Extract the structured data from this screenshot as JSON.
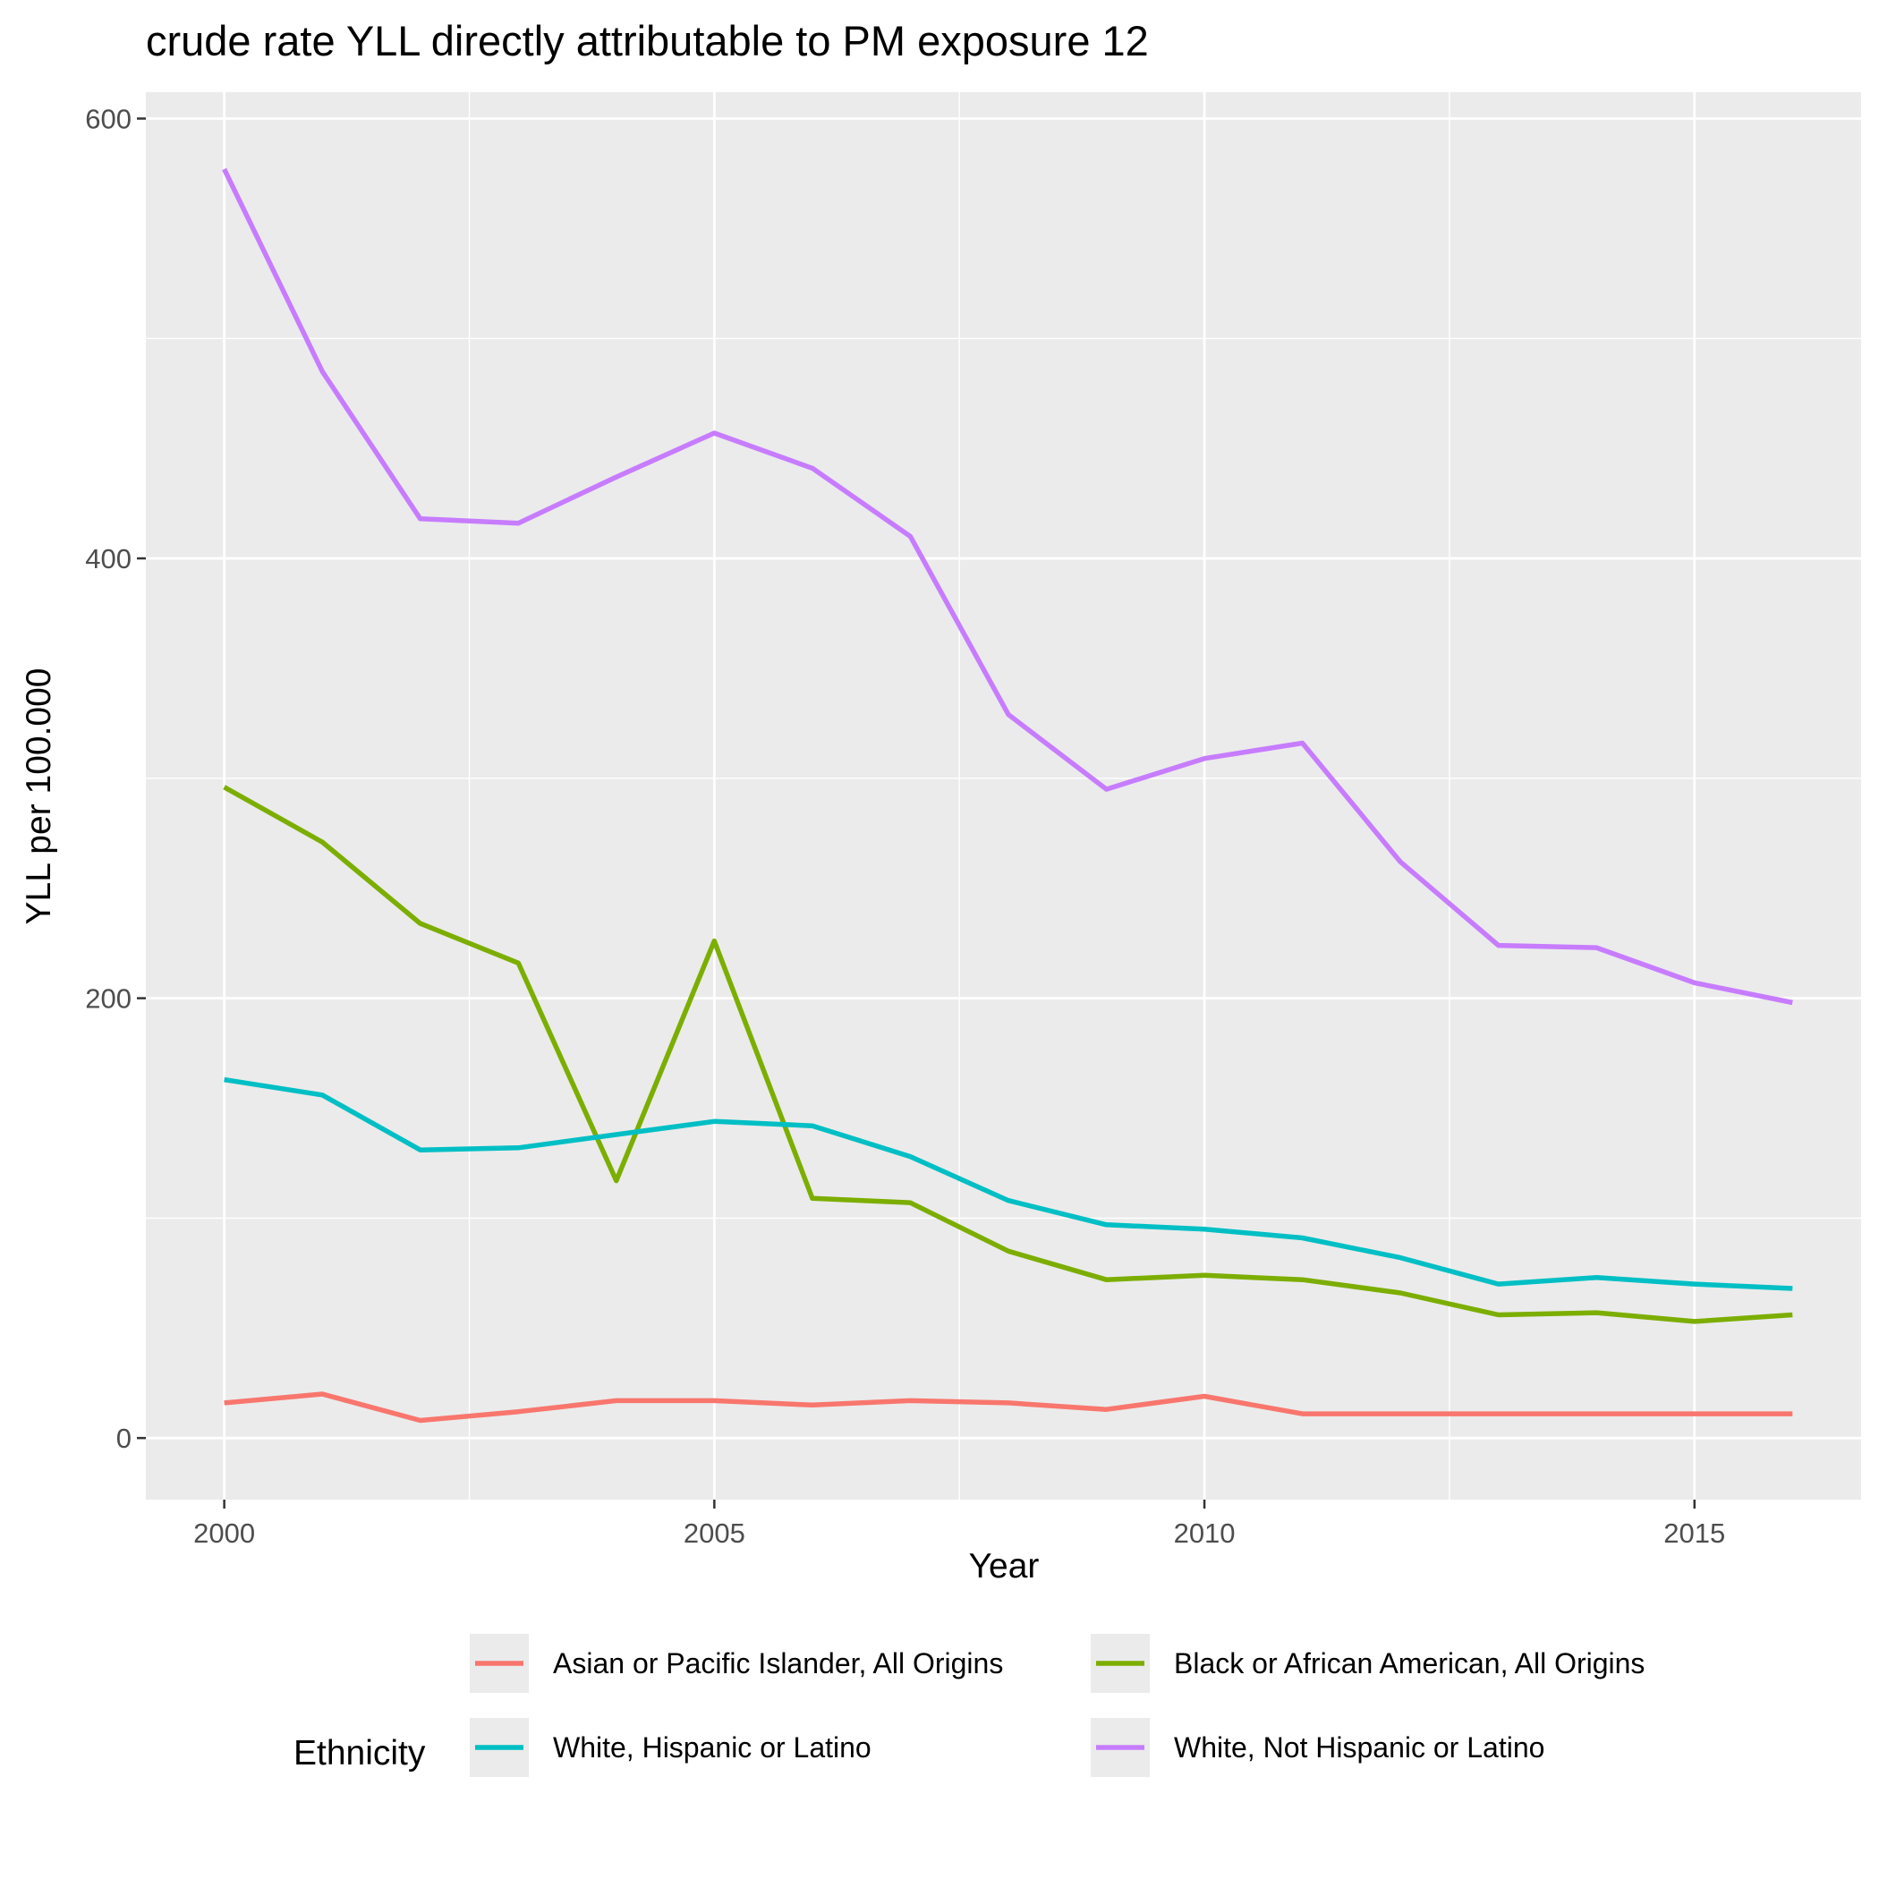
{
  "chart_data": {
    "type": "line",
    "title": "crude rate YLL directly attributable to PM exposure 12",
    "xlabel": "Year",
    "ylabel": "YLL per 100.000",
    "x": [
      2000,
      2001,
      2002,
      2003,
      2004,
      2005,
      2006,
      2007,
      2008,
      2009,
      2010,
      2011,
      2012,
      2013,
      2014,
      2015,
      2016
    ],
    "xlim": [
      1999.2,
      2016.7
    ],
    "ylim": [
      -28,
      612
    ],
    "x_ticks": [
      2000,
      2005,
      2010,
      2015
    ],
    "x_tick_labels": [
      "2000",
      "2005",
      "2010",
      "2015"
    ],
    "y_ticks": [
      0,
      200,
      400,
      600
    ],
    "y_tick_labels": [
      "0",
      "200",
      "400",
      "600"
    ],
    "grid": true,
    "legend": {
      "title": "Ethnicity",
      "position": "bottom"
    },
    "series": [
      {
        "name": "Asian or Pacific Islander, All Origins",
        "color": "#F8766D",
        "values": [
          16,
          20,
          8,
          12,
          17,
          17,
          15,
          17,
          16,
          13,
          19,
          11,
          11,
          11,
          11,
          11,
          11
        ]
      },
      {
        "name": "Black or African American, All Origins",
        "color": "#7CAE00",
        "values": [
          296,
          271,
          234,
          216,
          117,
          226,
          109,
          107,
          85,
          72,
          74,
          72,
          66,
          56,
          57,
          53,
          56
        ]
      },
      {
        "name": "White, Hispanic or Latino",
        "color": "#00BFC4",
        "values": [
          163,
          156,
          131,
          132,
          138,
          144,
          142,
          128,
          108,
          97,
          95,
          91,
          82,
          70,
          73,
          70,
          68
        ]
      },
      {
        "name": "White, Not Hispanic or Latino",
        "color": "#C77CFF",
        "values": [
          577,
          485,
          418,
          416,
          437,
          457,
          441,
          410,
          329,
          295,
          309,
          316,
          262,
          224,
          223,
          207,
          198
        ]
      }
    ]
  }
}
